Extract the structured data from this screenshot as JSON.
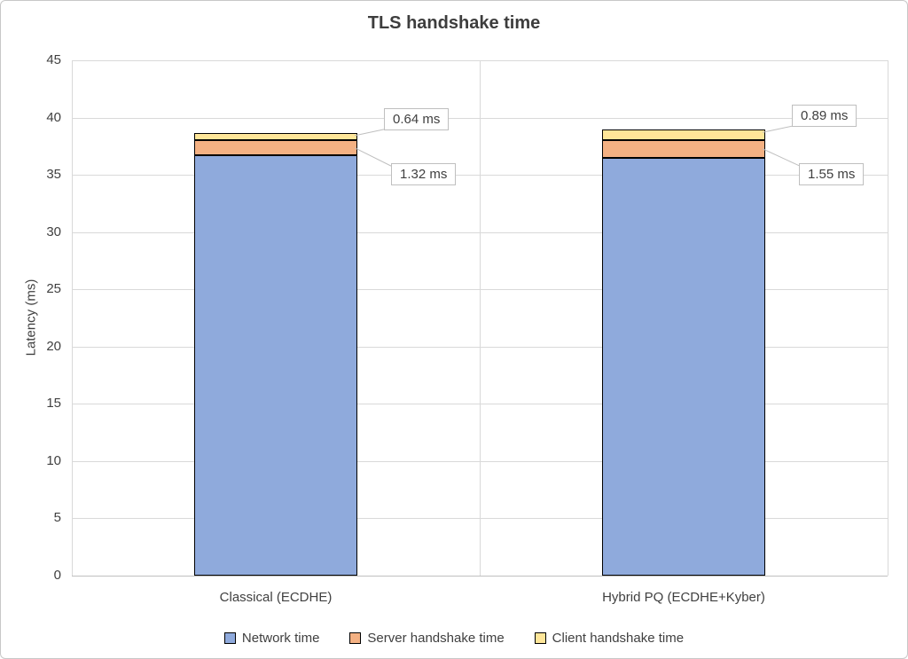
{
  "chart_data": {
    "type": "bar",
    "stacked": true,
    "title": "TLS handshake time",
    "xlabel": "",
    "ylabel": "Latency (ms)",
    "ylim": [
      0,
      45
    ],
    "yticks": [
      0,
      5,
      10,
      15,
      20,
      25,
      30,
      35,
      40,
      45
    ],
    "grid": true,
    "legend_position": "bottom",
    "categories": [
      "Classical (ECDHE)",
      "Hybrid PQ (ECDHE+Kyber)"
    ],
    "series": [
      {
        "name": "Network time",
        "color": "#8FAADC",
        "values": [
          36.7,
          36.5
        ]
      },
      {
        "name": "Server handshake time",
        "color": "#F4B183",
        "values": [
          1.32,
          1.55
        ]
      },
      {
        "name": "Client handshake time",
        "color": "#FFE699",
        "values": [
          0.64,
          0.89
        ]
      }
    ],
    "annotations": [
      {
        "text": "0.64 ms",
        "category": 0,
        "series": "Client handshake time"
      },
      {
        "text": "1.32 ms",
        "category": 0,
        "series": "Server handshake time"
      },
      {
        "text": "0.89 ms",
        "category": 1,
        "series": "Client handshake time"
      },
      {
        "text": "1.55 ms",
        "category": 1,
        "series": "Server handshake time"
      }
    ],
    "bar_border_color": "#000000"
  },
  "colors": {
    "background": "#FFFFFF",
    "frame_border": "#C8C8C8",
    "gridline": "#D9D9D9",
    "axis_line": "#BFBFBF",
    "text": "#404040",
    "callout_border": "#BFBFBF"
  }
}
